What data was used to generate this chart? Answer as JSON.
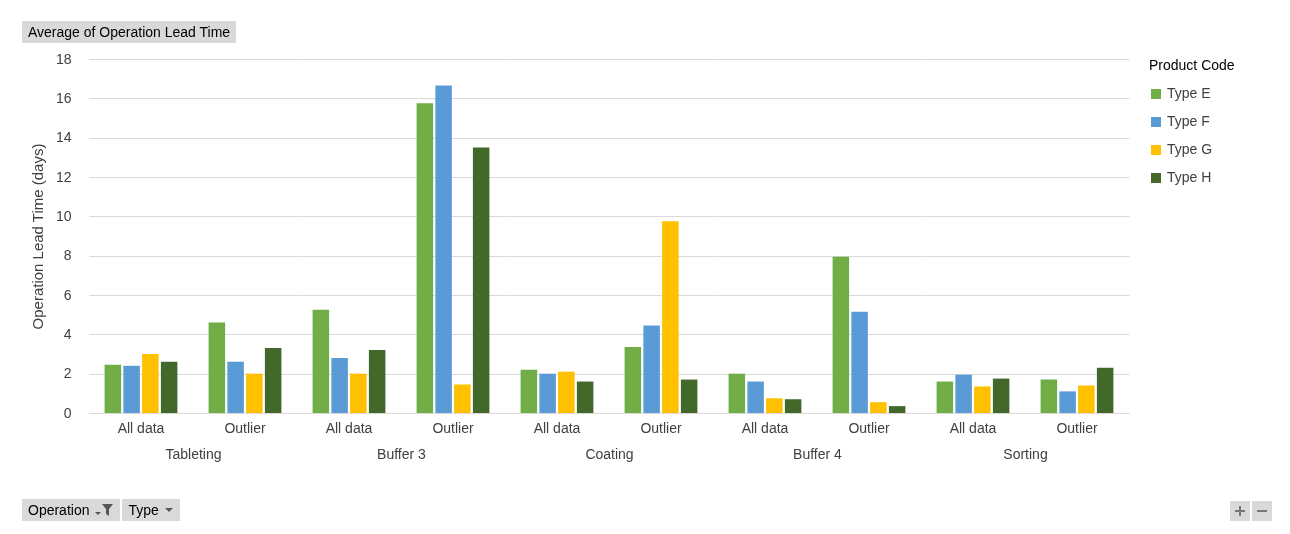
{
  "chart_data": {
    "type": "bar",
    "title": "Average of Operation Lead Time",
    "ylabel": "Operation Lead Time (days)",
    "legend_title": "Product Code",
    "categories": [
      "All data",
      "Outlier",
      "All data",
      "Outlier",
      "All data",
      "Outlier",
      "All data",
      "Outlier",
      "All data",
      "Outlier"
    ],
    "series": [
      {
        "name": "Type E",
        "color": "#70ad47",
        "values": [
          2.45,
          4.6,
          5.25,
          15.75,
          2.2,
          3.35,
          2.0,
          7.95,
          1.6,
          1.7
        ]
      },
      {
        "name": "Type F",
        "color": "#5b9bd5",
        "values": [
          2.4,
          2.6,
          2.8,
          16.65,
          2.0,
          4.45,
          1.6,
          5.15,
          1.95,
          1.1
        ]
      },
      {
        "name": "Type G",
        "color": "#ffc000",
        "values": [
          3.0,
          2.0,
          2.0,
          1.45,
          2.1,
          9.75,
          0.75,
          0.55,
          1.35,
          1.4
        ]
      },
      {
        "name": "Type H",
        "color": "#43682b",
        "values": [
          2.6,
          3.3,
          3.2,
          13.5,
          1.6,
          1.7,
          0.7,
          0.35,
          1.75,
          2.3
        ]
      }
    ],
    "ylim": [
      0,
      18
    ],
    "yticks": [
      0,
      2,
      4,
      6,
      8,
      10,
      12,
      14,
      16,
      18
    ],
    "grid": "y",
    "legend": "right",
    "annotations": [
      "Tableting",
      "Buffer 3",
      "Coating",
      "Buffer 4",
      "Sorting",
      "Operation",
      "Type"
    ]
  }
}
